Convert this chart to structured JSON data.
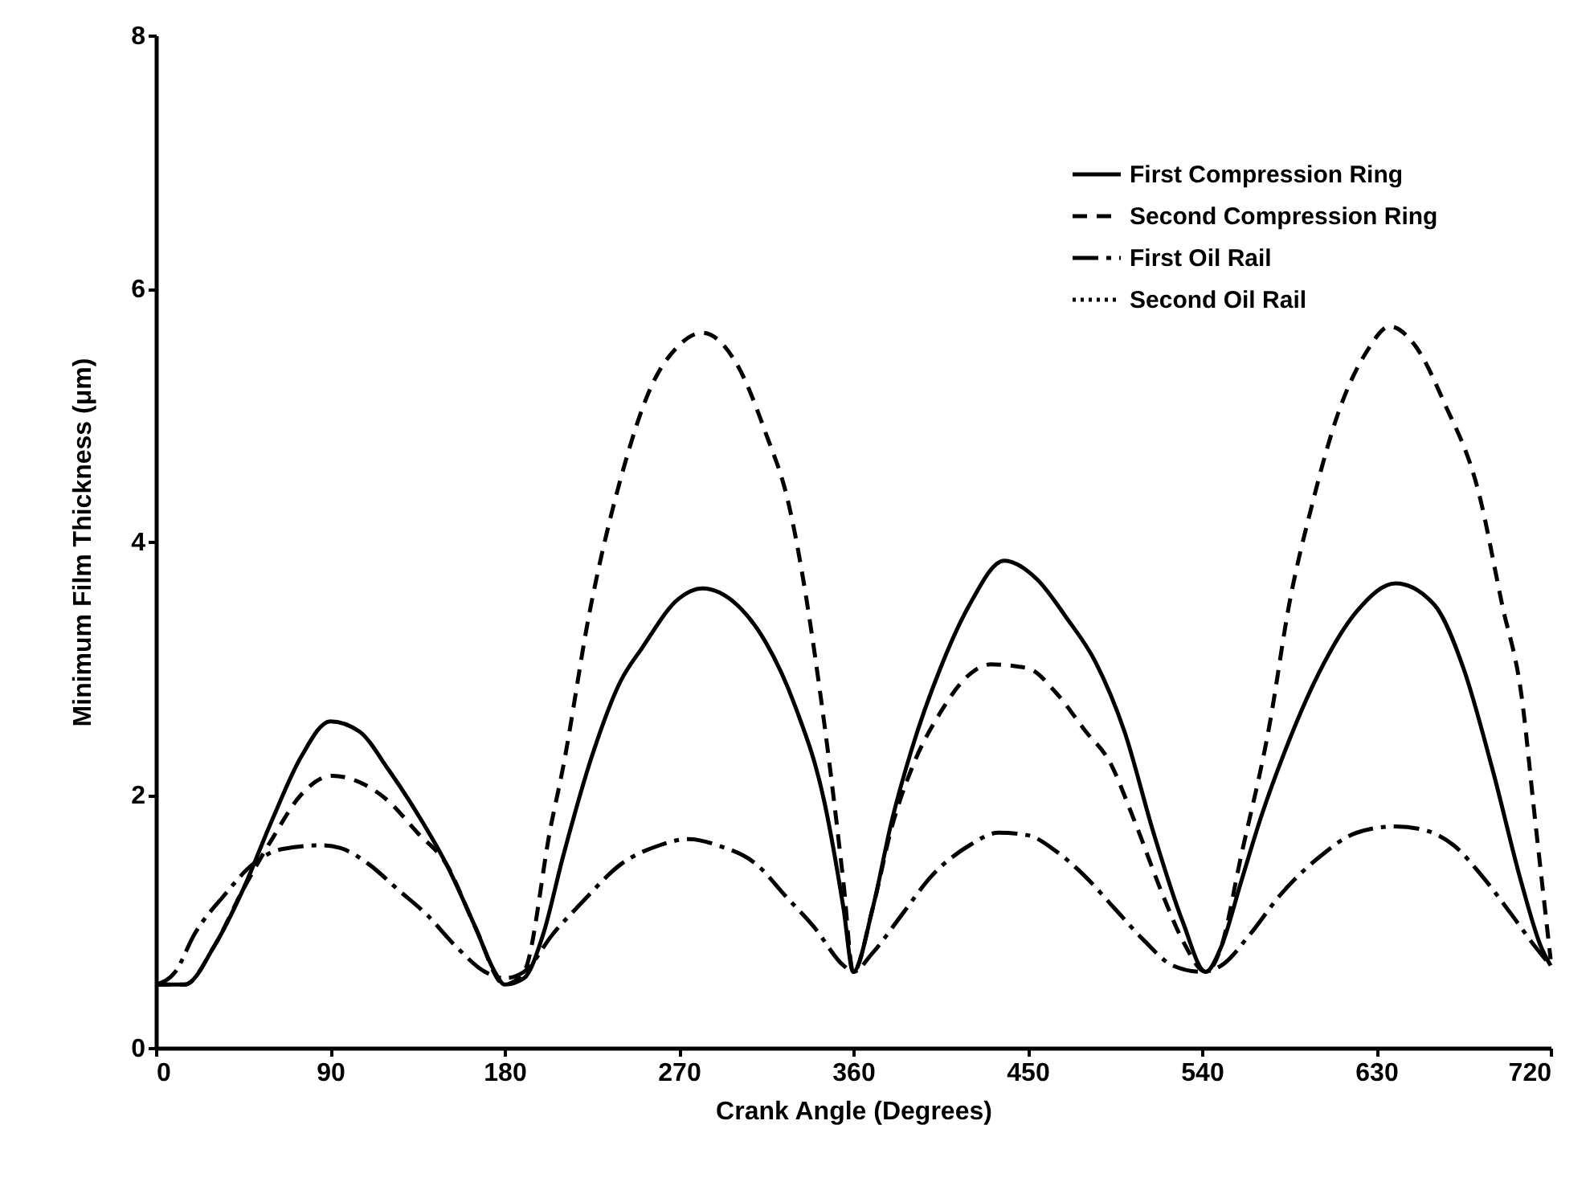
{
  "chart_data": {
    "type": "line",
    "xlabel": "Crank Angle (Degrees)",
    "ylabel": "Minimum Film Thickness (μm)",
    "xlim": [
      0,
      720
    ],
    "xticks": [
      0,
      90,
      180,
      270,
      360,
      450,
      540,
      630,
      720
    ],
    "ylim": [
      0,
      8
    ],
    "yticks": [
      0,
      2,
      4,
      6,
      8
    ],
    "grid": false,
    "legend": "top right",
    "marker": "none",
    "series": [
      {
        "name": "First Compression Ring",
        "color": "#000000",
        "line_style": "solid",
        "x": [
          0,
          15,
          30,
          45,
          60,
          75,
          90,
          105,
          120,
          135,
          150,
          165,
          175,
          180,
          190,
          200,
          210,
          225,
          240,
          251,
          270,
          282,
          300,
          315,
          330,
          345,
          355,
          360,
          370,
          380,
          390,
          405,
          420,
          438,
          455,
          470,
          485,
          500,
          515,
          530,
          542,
          550,
          560,
          570,
          583,
          600,
          620,
          640,
          660,
          675,
          690,
          705,
          715,
          720
        ],
        "values": [
          0.5,
          0.5,
          0.8,
          1.25,
          1.8,
          2.3,
          2.58,
          2.5,
          2.2,
          1.85,
          1.45,
          0.95,
          0.6,
          0.5,
          0.55,
          0.9,
          1.5,
          2.3,
          2.9,
          3.16,
          3.55,
          3.63,
          3.5,
          3.2,
          2.7,
          1.95,
          1.1,
          0.6,
          1.1,
          1.8,
          2.35,
          3.0,
          3.5,
          3.85,
          3.7,
          3.4,
          3.05,
          2.5,
          1.7,
          1.0,
          0.6,
          0.8,
          1.3,
          1.8,
          2.35,
          2.95,
          3.45,
          3.67,
          3.5,
          3.0,
          2.2,
          1.3,
          0.8,
          0.65
        ]
      },
      {
        "name": "Second Compression Ring",
        "color": "#000000",
        "line_style": "dashed",
        "x": [
          0,
          15,
          30,
          45,
          60,
          75,
          91,
          105,
          120,
          135,
          150,
          165,
          180,
          190,
          204,
          210,
          224,
          240,
          255,
          270,
          282,
          300,
          315,
          326,
          345,
          355,
          360,
          370,
          380,
          390,
          405,
          420,
          431,
          450,
          465,
          480,
          492,
          505,
          520,
          530,
          542,
          550,
          560,
          575,
          585,
          597,
          610,
          625,
          637,
          650,
          665,
          683,
          695,
          705,
          712,
          720
        ],
        "values": [
          0.5,
          0.5,
          0.8,
          1.25,
          1.65,
          2.0,
          2.15,
          2.1,
          1.95,
          1.7,
          1.45,
          0.95,
          0.5,
          0.6,
          1.76,
          2.2,
          3.45,
          4.5,
          5.2,
          5.55,
          5.65,
          5.4,
          4.85,
          4.34,
          2.57,
          1.3,
          0.6,
          1.1,
          1.75,
          2.2,
          2.65,
          2.95,
          3.03,
          3.0,
          2.8,
          2.5,
          2.27,
          1.8,
          1.2,
          0.85,
          0.6,
          0.8,
          1.5,
          2.56,
          3.5,
          4.3,
          5.0,
          5.5,
          5.7,
          5.55,
          5.1,
          4.38,
          3.5,
          2.78,
          1.8,
          0.7
        ]
      },
      {
        "name": "First Oil Rail",
        "color": "#000000",
        "line_style": "dashdot",
        "x": [
          0,
          10,
          20,
          35,
          50,
          65,
          86,
          95,
          110,
          125,
          140,
          155,
          170,
          180,
          190,
          205,
          220,
          240,
          260,
          275,
          290,
          310,
          325,
          340,
          355,
          360,
          370,
          385,
          400,
          420,
          435,
          450,
          465,
          480,
          495,
          510,
          525,
          540,
          550,
          565,
          580,
          600,
          620,
          640,
          655,
          670,
          685,
          700,
          712,
          720
        ],
        "values": [
          0.5,
          0.6,
          0.9,
          1.2,
          1.45,
          1.57,
          1.6,
          1.58,
          1.45,
          1.25,
          1.05,
          0.8,
          0.6,
          0.55,
          0.6,
          0.9,
          1.15,
          1.45,
          1.6,
          1.65,
          1.6,
          1.45,
          1.2,
          0.95,
          0.65,
          0.6,
          0.75,
          1.05,
          1.35,
          1.6,
          1.7,
          1.68,
          1.55,
          1.35,
          1.1,
          0.85,
          0.65,
          0.6,
          0.65,
          0.9,
          1.2,
          1.5,
          1.7,
          1.75,
          1.72,
          1.6,
          1.35,
          1.05,
          0.8,
          0.65
        ]
      },
      {
        "name": "Second Oil Rail",
        "color": "#000000",
        "line_style": "dotted"
      }
    ]
  }
}
